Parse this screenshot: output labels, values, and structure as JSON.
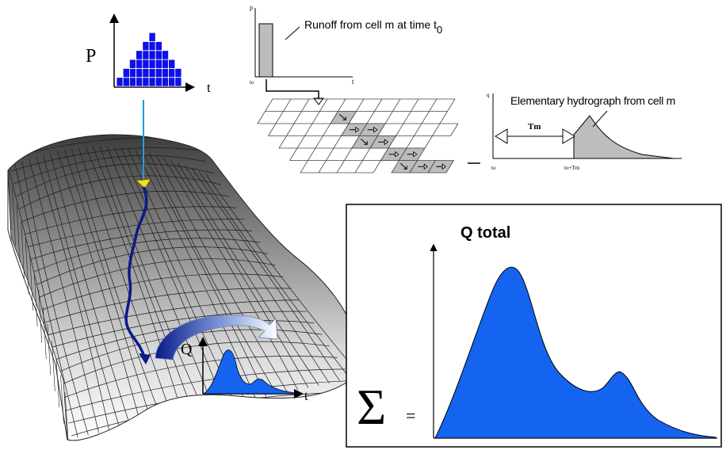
{
  "precipitation": {
    "axis_y": "P",
    "axis_x": "t",
    "bars": [
      1,
      2,
      3,
      4,
      5,
      6,
      5,
      4,
      3,
      2
    ],
    "bar_color": "#1010e6"
  },
  "runoff_panel": {
    "axis_y": "p",
    "axis_x": "t",
    "origin_label": "to",
    "caption_main": "Runoff from cell m at time t",
    "caption_sub": "0"
  },
  "hydrograph_panel": {
    "axis_y": "q",
    "origin_label": "to",
    "shift_label": "to+Tm",
    "travel_label": "Tm",
    "caption": "Elementary hydrograph from cell m"
  },
  "outlet_hydrograph": {
    "axis_y": "Q",
    "axis_x": "t"
  },
  "total_panel": {
    "title": "Q total",
    "sum_symbol": "Σ",
    "equals": "=",
    "fill_color": "#1464f0"
  },
  "colors": {
    "flow_path": "#0b1a8a",
    "rain_line": "#1aa0e0",
    "marker": "#f4e21a",
    "grid_fill": "#c8c8c8"
  }
}
